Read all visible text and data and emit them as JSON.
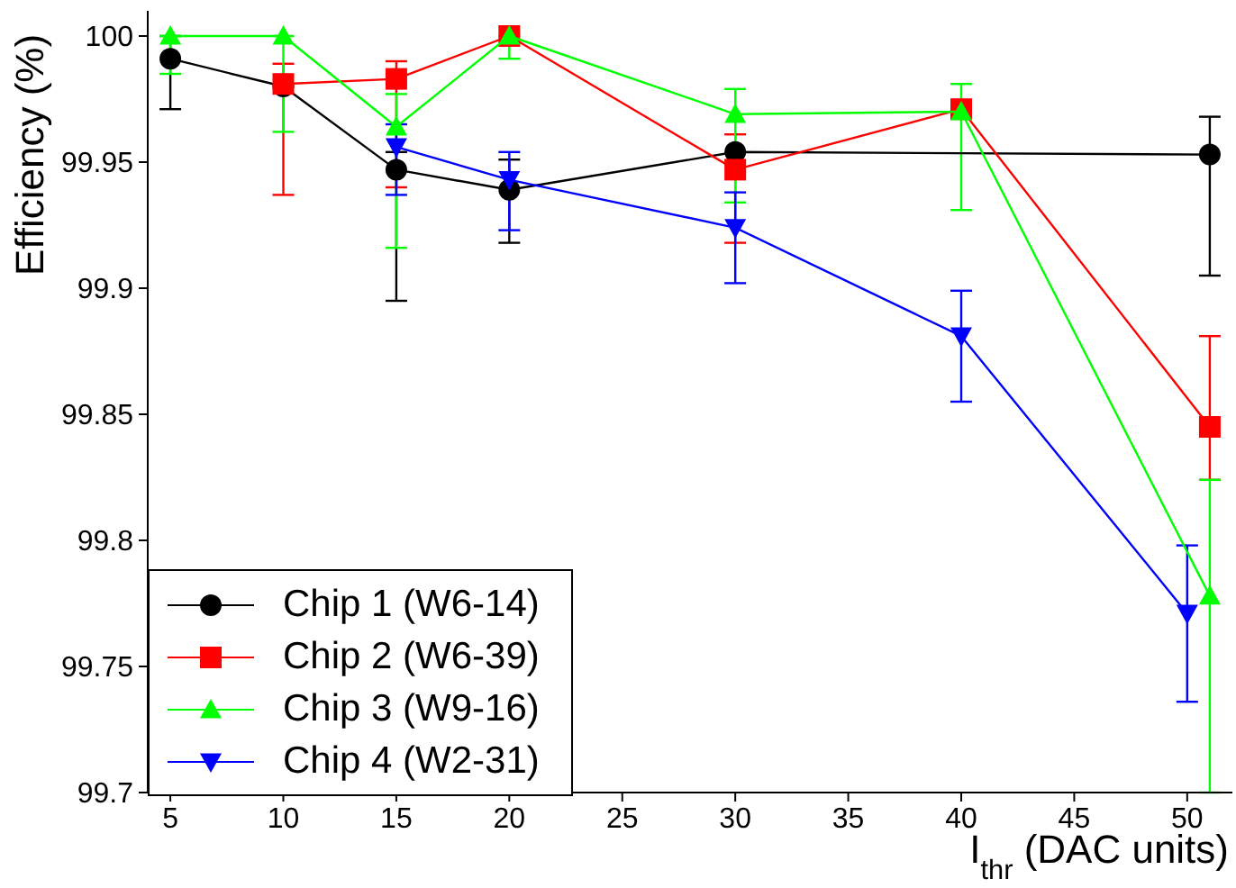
{
  "chart_data": {
    "type": "line",
    "xlabel": "I$_{thr}$ (DAC units)",
    "ylabel": "Efficiency (%)",
    "xlim": [
      4,
      52
    ],
    "xticks": [
      5,
      10,
      15,
      20,
      25,
      30,
      35,
      40,
      45,
      50
    ],
    "ylim": [
      99.7,
      100.01
    ],
    "yticks": [
      99.7,
      99.75,
      99.8,
      99.85,
      99.9,
      99.95,
      100
    ],
    "legend": "bottom left",
    "line_style": "solid",
    "series": [
      {
        "name": "Chip 1 (W6-14)",
        "color": "#000000",
        "marker": "circle",
        "x": [
          5,
          10,
          15,
          20,
          30,
          51
        ],
        "values": [
          99.991,
          99.98,
          99.947,
          99.939,
          99.954,
          99.953
        ],
        "errors": [
          [
            99.971,
            100
          ],
          null,
          [
            99.895,
            99.954
          ],
          [
            99.918,
            99.951
          ],
          null,
          [
            99.905,
            99.968
          ]
        ]
      },
      {
        "name": "Chip 2 (W6-39)",
        "color": "#ff0000",
        "marker": "square",
        "x": [
          10,
          15,
          20,
          30,
          40,
          51
        ],
        "values": [
          99.981,
          99.983,
          100,
          99.947,
          99.971,
          99.845
        ],
        "errors": [
          [
            99.937,
            99.989
          ],
          [
            99.94,
            99.99
          ],
          null,
          [
            99.918,
            99.961
          ],
          null,
          [
            99.824,
            99.881
          ]
        ]
      },
      {
        "name": "Chip 3 (W9-16)",
        "color": "#00ff00",
        "marker": "triangle",
        "x": [
          5,
          10,
          15,
          20,
          30,
          40,
          51
        ],
        "values": [
          100,
          100,
          99.964,
          100,
          99.969,
          99.97,
          99.778
        ],
        "errors": [
          [
            99.985,
            100
          ],
          [
            99.962,
            100
          ],
          [
            99.916,
            99.977
          ],
          [
            99.991,
            100
          ],
          [
            99.934,
            99.979
          ],
          [
            99.931,
            99.981
          ],
          [
            99.7,
            99.824
          ]
        ]
      },
      {
        "name": "Chip 4 (W2-31)",
        "color": "#0000ff",
        "marker": "triangle-down",
        "x": [
          15,
          20,
          30,
          40,
          50
        ],
        "values": [
          99.956,
          99.943,
          99.924,
          99.881,
          99.771
        ],
        "errors": [
          [
            99.937,
            99.965
          ],
          [
            99.923,
            99.954
          ],
          [
            99.902,
            99.938
          ],
          [
            99.855,
            99.899
          ],
          [
            99.736,
            99.798
          ]
        ]
      }
    ]
  }
}
